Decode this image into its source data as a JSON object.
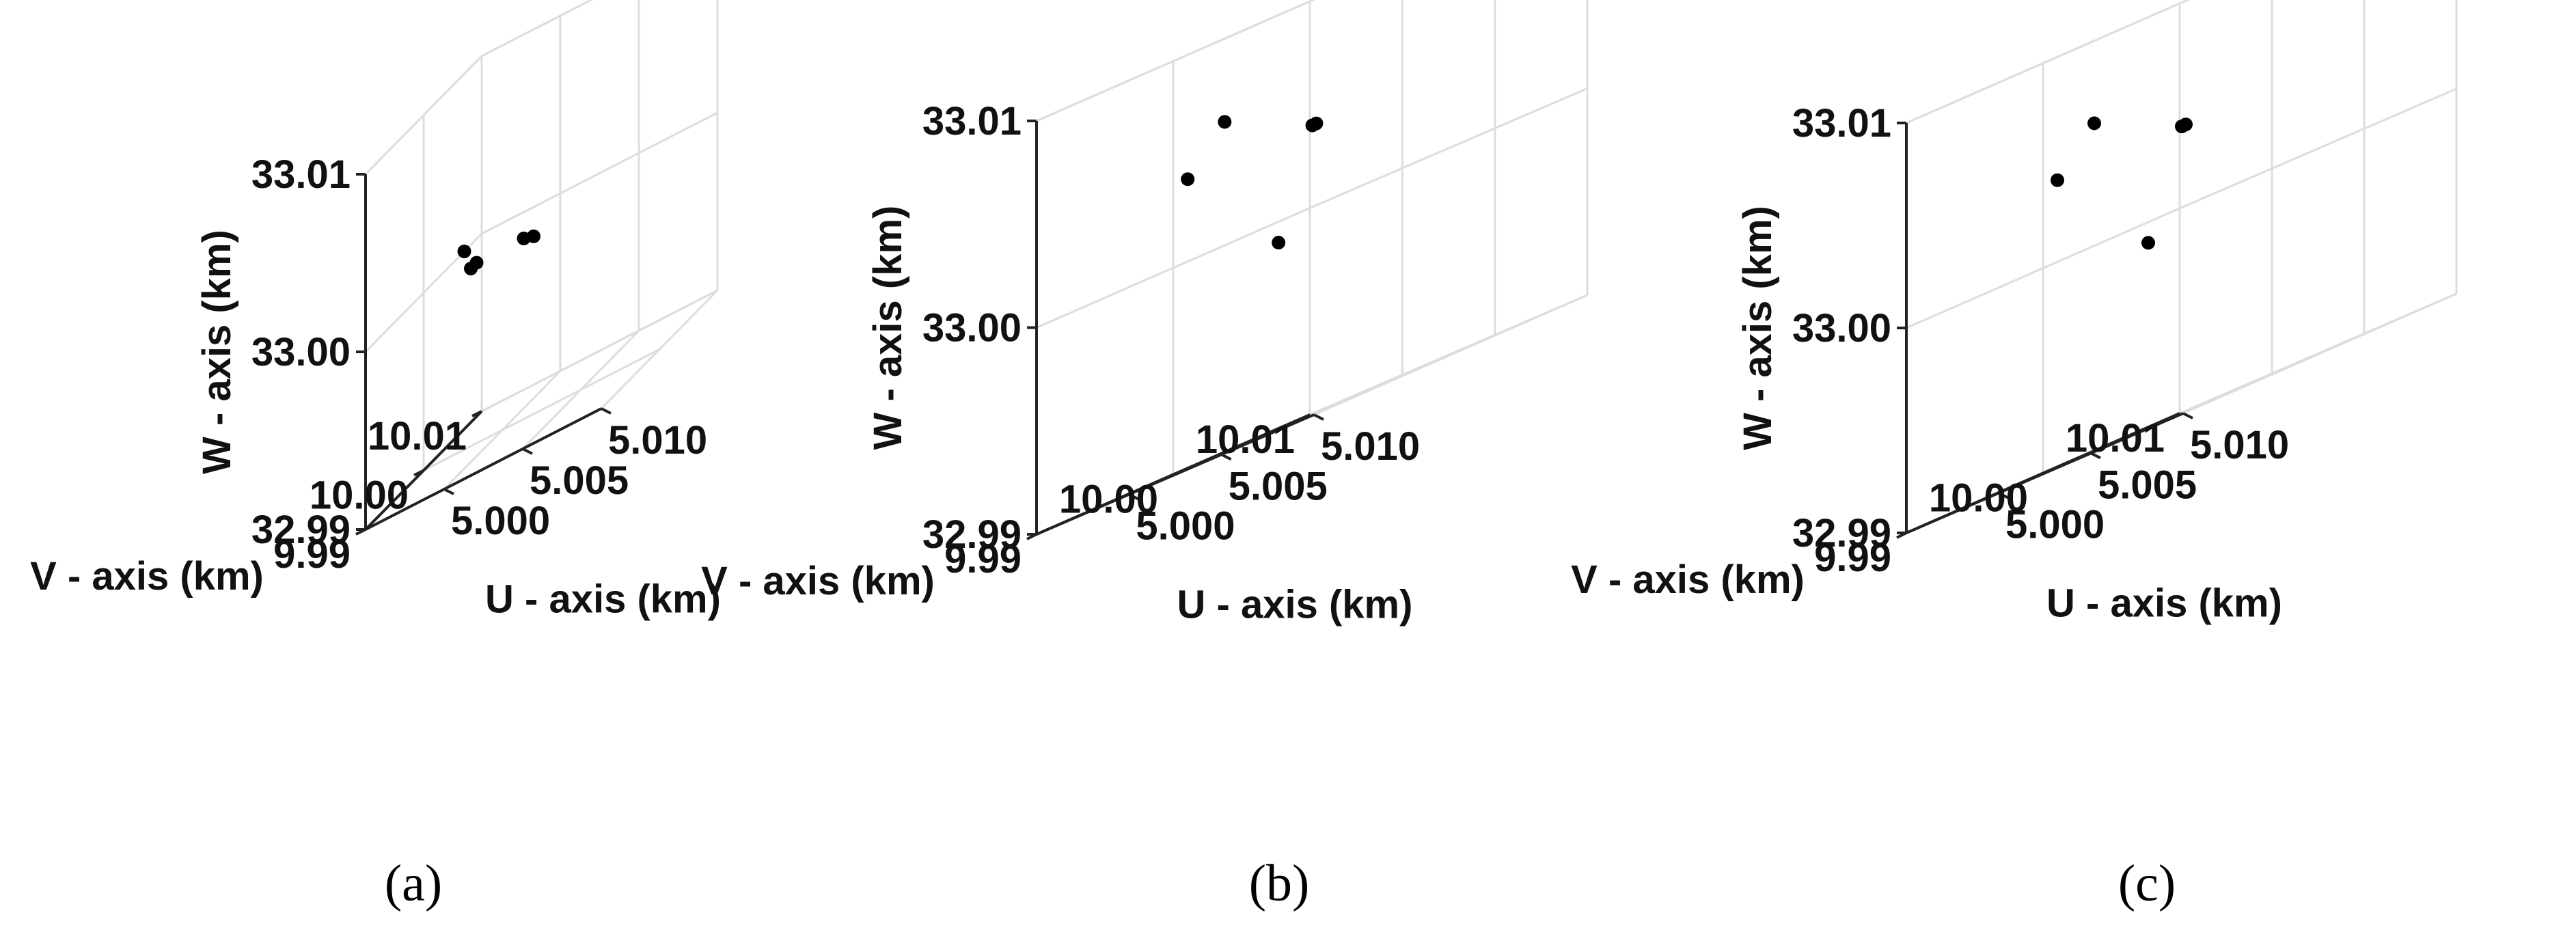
{
  "chart_data": [
    {
      "type": "scatter3d",
      "caption": "(a)",
      "xlabel": "U - axis (km)",
      "ylabel": "V - axis (km)",
      "zlabel": "W - axis (km)",
      "xlim": [
        4.995,
        5.01
      ],
      "ylim": [
        9.99,
        10.01
      ],
      "zlim": [
        32.99,
        33.01
      ],
      "xticks": [
        5.0,
        5.005,
        5.01
      ],
      "xtick_labels": [
        "5.000",
        "5.005",
        "5.010"
      ],
      "yticks": [
        9.99,
        10.0,
        10.01
      ],
      "ytick_labels": [
        "9.99",
        "10.00",
        "10.01"
      ],
      "zticks": [
        32.99,
        33.0,
        33.01
      ],
      "ztick_labels": [
        "32.99",
        "33.00",
        "33.01"
      ],
      "points": [
        {
          "u": 4.995,
          "v": 10.007,
          "w": 33.0
        },
        {
          "u": 4.998,
          "v": 10.001,
          "w": 33.0
        },
        {
          "u": 4.998,
          "v": 10.0,
          "w": 33.0
        },
        {
          "u": 5.001,
          "v": 10.001,
          "w": 33.0
        },
        {
          "u": 5.002,
          "v": 10.0,
          "w": 33.0
        }
      ]
    },
    {
      "type": "scatter3d",
      "caption": "(b)",
      "xlabel": "U - axis (km)",
      "ylabel": "V - axis (km)",
      "zlabel": "W - axis (km)",
      "xlim": [
        4.995,
        5.01
      ],
      "ylim": [
        9.99,
        10.01
      ],
      "zlim": [
        32.99,
        33.01
      ],
      "xticks": [
        5.0,
        5.005,
        5.01
      ],
      "xtick_labels": [
        "5.000",
        "5.005",
        "5.010"
      ],
      "yticks": [
        9.99,
        10.0,
        10.01
      ],
      "ytick_labels": [
        "9.99",
        "10.00",
        "10.01"
      ],
      "zticks": [
        32.99,
        33.0,
        33.01
      ],
      "ztick_labels": [
        "32.99",
        "33.00",
        "33.01"
      ],
      "points": [
        {
          "u": 4.997,
          "v": 10.005,
          "w": 32.999
        },
        {
          "u": 4.998,
          "v": 9.997,
          "w": 33.004
        },
        {
          "u": 5.0,
          "v": 9.997,
          "w": 33.006
        },
        {
          "u": 5.002,
          "v": 10.001,
          "w": 33.004
        },
        {
          "u": 5.004,
          "v": 9.998,
          "w": 33.004
        }
      ]
    },
    {
      "type": "scatter3d",
      "caption": "(c)",
      "xlabel": "U - axis (km)",
      "ylabel": "V - axis (km)",
      "zlabel": "W - axis (km)",
      "xlim": [
        4.995,
        5.01
      ],
      "ylim": [
        9.99,
        10.01
      ],
      "zlim": [
        32.99,
        33.01
      ],
      "xticks": [
        5.0,
        5.005,
        5.01
      ],
      "xtick_labels": [
        "5.000",
        "5.005",
        "5.010"
      ],
      "yticks": [
        9.99,
        10.0,
        10.01
      ],
      "ytick_labels": [
        "9.99",
        "10.00",
        "10.01"
      ],
      "zticks": [
        32.99,
        33.0,
        33.01
      ],
      "ztick_labels": [
        "32.99",
        "33.00",
        "33.01"
      ],
      "points": [
        {
          "u": 4.997,
          "v": 10.005,
          "w": 32.999
        },
        {
          "u": 4.998,
          "v": 9.997,
          "w": 33.004
        },
        {
          "u": 5.0,
          "v": 9.997,
          "w": 33.006
        },
        {
          "u": 5.002,
          "v": 10.001,
          "w": 33.004
        },
        {
          "u": 5.004,
          "v": 9.998,
          "w": 33.004
        }
      ]
    }
  ]
}
